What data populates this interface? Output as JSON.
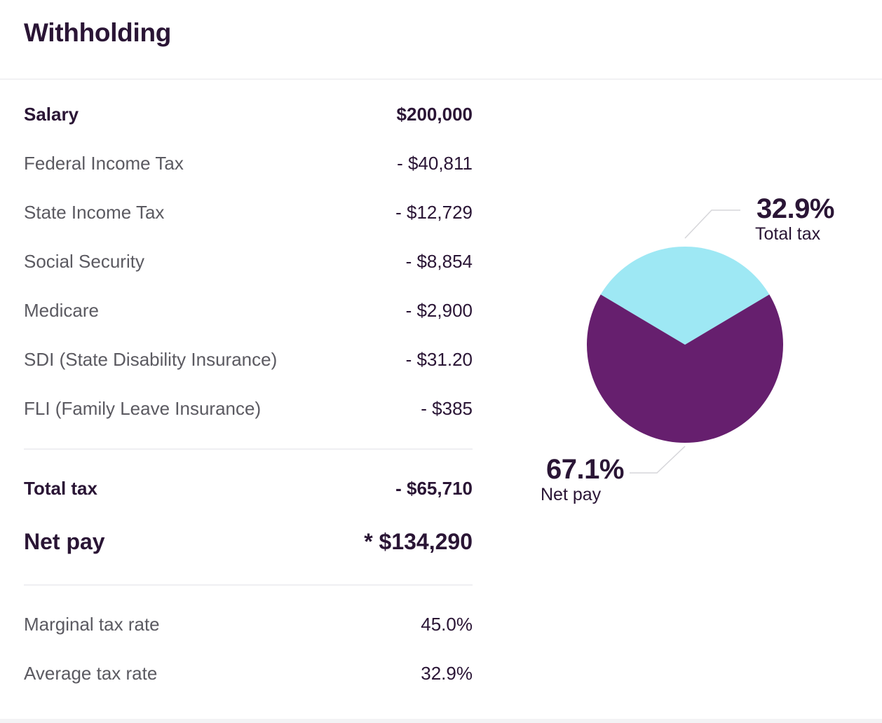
{
  "header": {
    "title": "Withholding"
  },
  "rows": {
    "salary": {
      "label": "Salary",
      "value": "$200,000"
    },
    "federal": {
      "label": "Federal Income Tax",
      "value": "- $40,811"
    },
    "state": {
      "label": "State Income Tax",
      "value": "- $12,729"
    },
    "social": {
      "label": "Social Security",
      "value": "- $8,854"
    },
    "medicare": {
      "label": "Medicare",
      "value": "- $2,900"
    },
    "sdi": {
      "label": "SDI (State Disability Insurance)",
      "value": "- $31.20"
    },
    "fli": {
      "label": "FLI (Family Leave Insurance)",
      "value": "- $385"
    },
    "total_tax": {
      "label": "Total tax",
      "value": "- $65,710"
    },
    "net_pay": {
      "label": "Net pay",
      "value": "* $134,290"
    },
    "marginal": {
      "label": "Marginal tax rate",
      "value": "45.0%"
    },
    "average": {
      "label": "Average tax rate",
      "value": "32.9%"
    }
  },
  "chart": {
    "slices": [
      {
        "name": "Total tax",
        "percent": 32.9,
        "percent_label": "32.9%",
        "label": "Total tax",
        "color": "#9ee8f4"
      },
      {
        "name": "Net pay",
        "percent": 67.1,
        "percent_label": "67.1%",
        "label": "Net pay",
        "color": "#661f6e"
      }
    ],
    "leader_color": "#d6d6da"
  }
}
